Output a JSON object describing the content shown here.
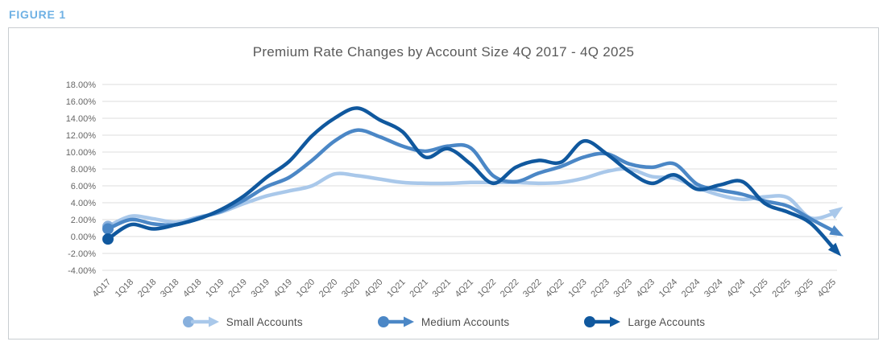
{
  "figure_label": "FIGURE 1",
  "chart_data": {
    "type": "line",
    "title": "Premium Rate Changes by Account Size 4Q 2017 - 4Q 2025",
    "categories": [
      "4Q17",
      "1Q18",
      "2Q18",
      "3Q18",
      "4Q18",
      "1Q19",
      "2Q19",
      "3Q19",
      "4Q19",
      "1Q20",
      "2Q20",
      "3Q20",
      "4Q20",
      "1Q21",
      "2Q21",
      "3Q21",
      "4Q21",
      "1Q22",
      "2Q22",
      "3Q22",
      "4Q22",
      "1Q23",
      "2Q23",
      "3Q23",
      "4Q23",
      "1Q24",
      "2Q24",
      "3Q24",
      "4Q24",
      "1Q25",
      "2Q25",
      "3Q25",
      "4Q25"
    ],
    "unit": "%",
    "ylim": [
      -4,
      18
    ],
    "y_tick_step": 2,
    "y_tick_labels": [
      "18.00%",
      "16.00%",
      "14.00%",
      "12.00%",
      "10.00%",
      "8.00%",
      "6.00%",
      "4.00%",
      "2.00%",
      "0.00%",
      "-2.00%",
      "-4.00%"
    ],
    "grid": true,
    "legend_position": "bottom",
    "start_marker": "dot",
    "end_marker": "arrow",
    "grid_color": "#dcdcdc",
    "axis_text_color": "#666666",
    "series": [
      {
        "name": "Small Accounts",
        "color": "#a9c8ea",
        "dot_color": "#88b0dd",
        "arrow_angle_deg": -35,
        "values": [
          1.2,
          2.4,
          2.1,
          1.7,
          2.3,
          2.9,
          3.9,
          4.8,
          5.4,
          6.0,
          7.4,
          7.2,
          6.8,
          6.4,
          6.3,
          6.3,
          6.4,
          6.4,
          6.4,
          6.3,
          6.4,
          6.9,
          7.7,
          8.0,
          7.1,
          6.9,
          5.8,
          4.9,
          4.4,
          4.7,
          4.6,
          2.2,
          2.7
        ]
      },
      {
        "name": "Medium Accounts",
        "color": "#4b87c6",
        "dot_color": "#4b87c6",
        "arrow_angle_deg": 28,
        "values": [
          0.9,
          2.0,
          1.5,
          1.4,
          2.2,
          3.0,
          4.3,
          5.9,
          7.0,
          9.0,
          11.3,
          12.6,
          11.8,
          10.7,
          10.1,
          10.7,
          10.5,
          7.2,
          6.5,
          7.5,
          8.3,
          9.4,
          9.8,
          8.6,
          8.2,
          8.6,
          6.2,
          5.5,
          5.0,
          4.2,
          3.6,
          2.1,
          0.7
        ]
      },
      {
        "name": "Large Accounts",
        "color": "#10589e",
        "dot_color": "#10589e",
        "arrow_angle_deg": 47,
        "values": [
          -0.3,
          1.4,
          0.9,
          1.4,
          2.1,
          3.2,
          4.8,
          7.0,
          8.9,
          11.9,
          14.0,
          15.2,
          13.8,
          12.4,
          9.4,
          10.4,
          8.6,
          6.3,
          8.2,
          9.0,
          8.8,
          11.3,
          9.8,
          7.7,
          6.3,
          7.3,
          5.6,
          6.1,
          6.5,
          3.9,
          2.9,
          1.6,
          -1.3
        ]
      }
    ]
  }
}
